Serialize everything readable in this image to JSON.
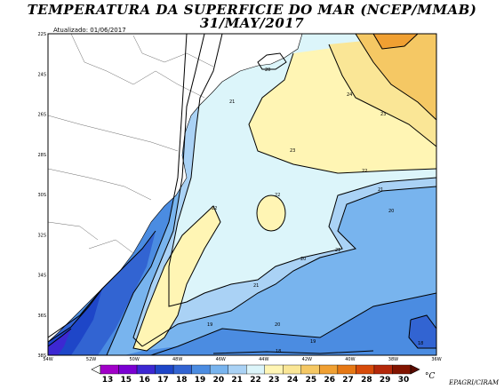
{
  "title_line1": "TEMPERATURA DA SUPERFICIE DO MAR (NCEP/MMAB)",
  "title_line2": "31/MAY/2017",
  "updated": "Atualizado: 01/06/2017",
  "unit": "°C",
  "credit": "EPAGRI/CIRAM",
  "lat_labels": [
    "22S",
    "24S",
    "26S",
    "28S",
    "30S",
    "32S",
    "34S",
    "36S",
    "38S"
  ],
  "lon_labels": [
    "54W",
    "52W",
    "50W",
    "48W",
    "46W",
    "44W",
    "42W",
    "40W",
    "38W",
    "36W"
  ],
  "colorbar": {
    "values": [
      "13",
      "15",
      "16",
      "17",
      "18",
      "19",
      "20",
      "21",
      "22",
      "23",
      "24",
      "25",
      "26",
      "27",
      "28",
      "29",
      "30"
    ],
    "colors": [
      "#a100c8",
      "#7a00d2",
      "#3c28d2",
      "#1e46c8",
      "#3264d2",
      "#4b8ce1",
      "#78b4ee",
      "#aad2f5",
      "#dcf5fa",
      "#fff5b4",
      "#fae696",
      "#f5c864",
      "#f0a032",
      "#e67814",
      "#d74b0a",
      "#b4280a",
      "#821400"
    ]
  },
  "contour_labels": [
    "20",
    "21",
    "22",
    "22",
    "23",
    "23",
    "22",
    "21",
    "20",
    "21",
    "20",
    "21",
    "19",
    "20",
    "19",
    "18",
    "18",
    "24",
    "23"
  ]
}
